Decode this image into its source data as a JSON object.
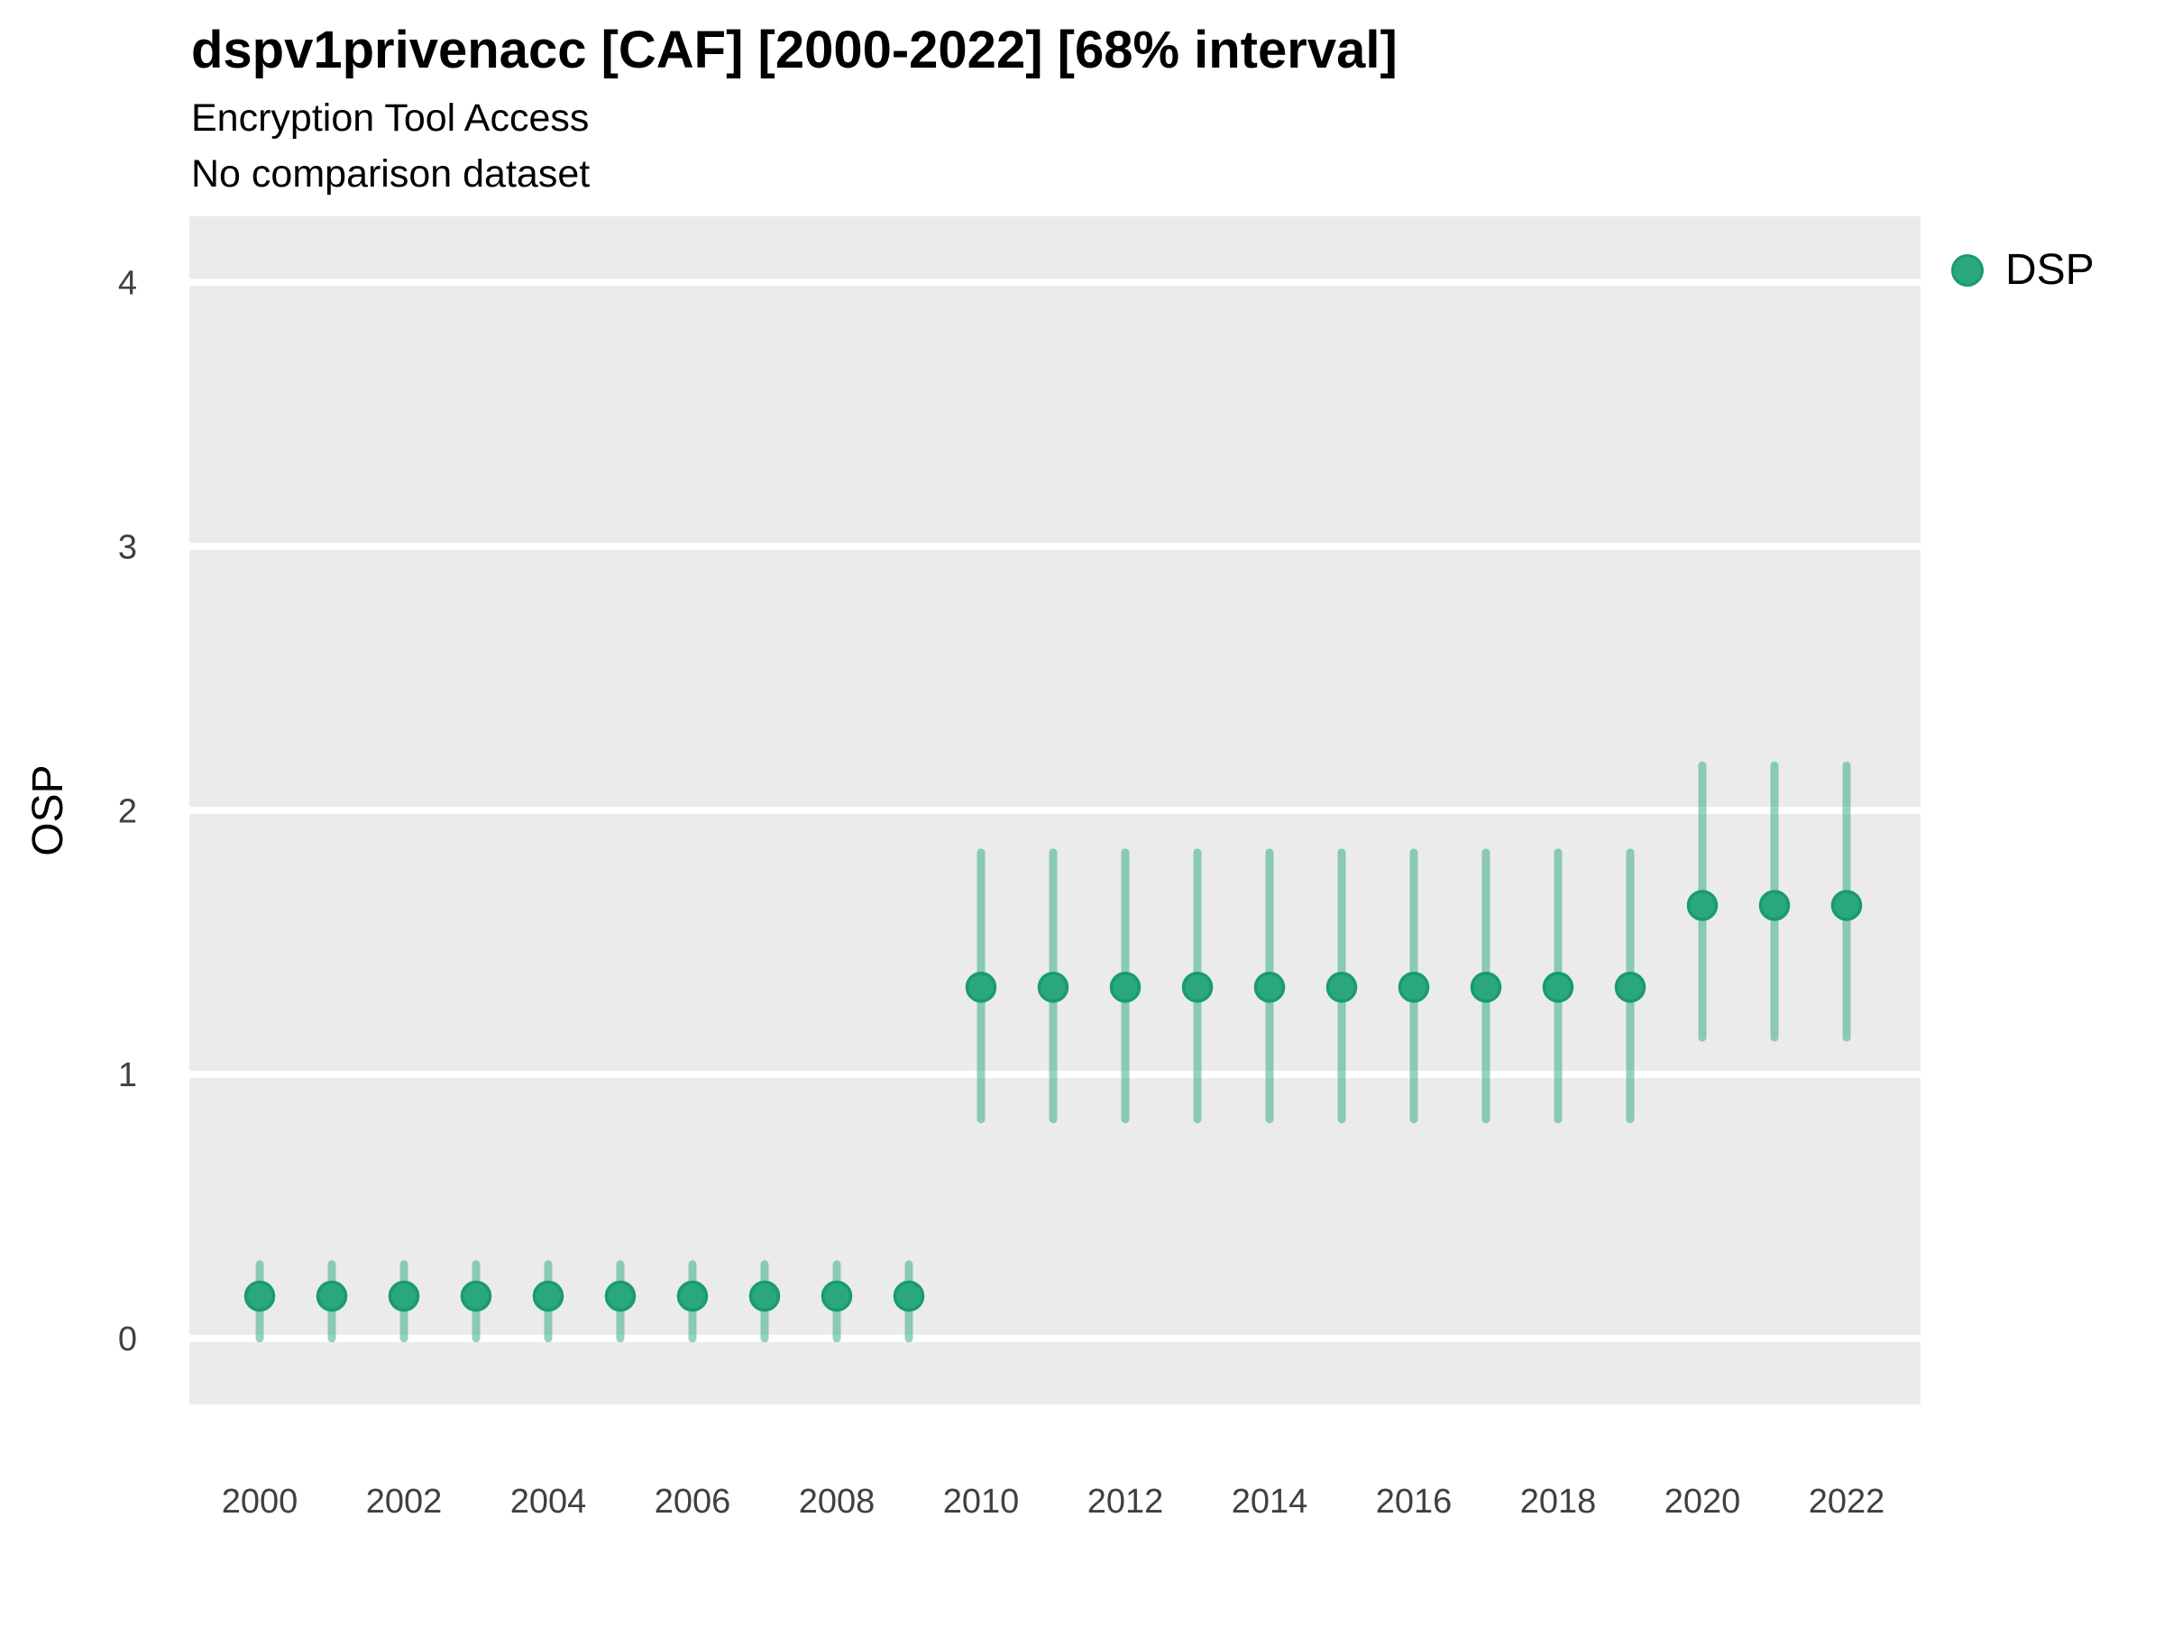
{
  "header": {
    "title": "dspv1privenacc [CAF] [2000-2022] [68% interval]",
    "subtitle": "Encryption Tool Access",
    "comparison_note": "No comparison dataset"
  },
  "legend": {
    "position": "right",
    "entries": [
      {
        "label": "DSP",
        "color": "#2aa87c"
      }
    ]
  },
  "colors": {
    "panel_bg": "#ebebeb",
    "grid": "#ffffff",
    "point_fill": "#2aa87c",
    "point_stroke": "#189c6c",
    "errorbar": "rgba(42,168,124,0.5)",
    "tick_text": "#404040",
    "title_text": "#000000"
  },
  "chart_data": {
    "type": "scatter",
    "title": "dspv1privenacc [CAF] [2000-2022] [68% interval]",
    "subtitle": "Encryption Tool Access",
    "note": "No comparison dataset",
    "xlabel": "",
    "ylabel": "OSP",
    "interval": "68%",
    "legend_position": "right",
    "grid": "major-white-on-gray",
    "ylim": [
      -0.25,
      4.25
    ],
    "yticks": [
      0,
      1,
      2,
      3,
      4
    ],
    "xticks": [
      2000,
      2002,
      2004,
      2006,
      2008,
      2010,
      2012,
      2014,
      2016,
      2018,
      2020,
      2022
    ],
    "x": [
      2000,
      2001,
      2002,
      2003,
      2004,
      2005,
      2006,
      2007,
      2008,
      2009,
      2010,
      2011,
      2012,
      2013,
      2014,
      2015,
      2016,
      2017,
      2018,
      2019,
      2020,
      2021,
      2022
    ],
    "series": [
      {
        "name": "DSP",
        "values": [
          0.16,
          0.16,
          0.16,
          0.16,
          0.16,
          0.16,
          0.16,
          0.16,
          0.16,
          0.16,
          1.33,
          1.33,
          1.33,
          1.33,
          1.33,
          1.33,
          1.33,
          1.33,
          1.33,
          1.33,
          1.64,
          1.64,
          1.64
        ],
        "low": [
          0.0,
          0.0,
          0.0,
          0.0,
          0.0,
          0.0,
          0.0,
          0.0,
          0.0,
          0.0,
          0.83,
          0.83,
          0.83,
          0.83,
          0.83,
          0.83,
          0.83,
          0.83,
          0.83,
          0.83,
          1.14,
          1.14,
          1.14
        ],
        "high": [
          0.28,
          0.28,
          0.28,
          0.28,
          0.28,
          0.28,
          0.28,
          0.28,
          0.28,
          0.28,
          1.84,
          1.84,
          1.84,
          1.84,
          1.84,
          1.84,
          1.84,
          1.84,
          1.84,
          1.84,
          2.17,
          2.17,
          2.17
        ]
      }
    ]
  }
}
